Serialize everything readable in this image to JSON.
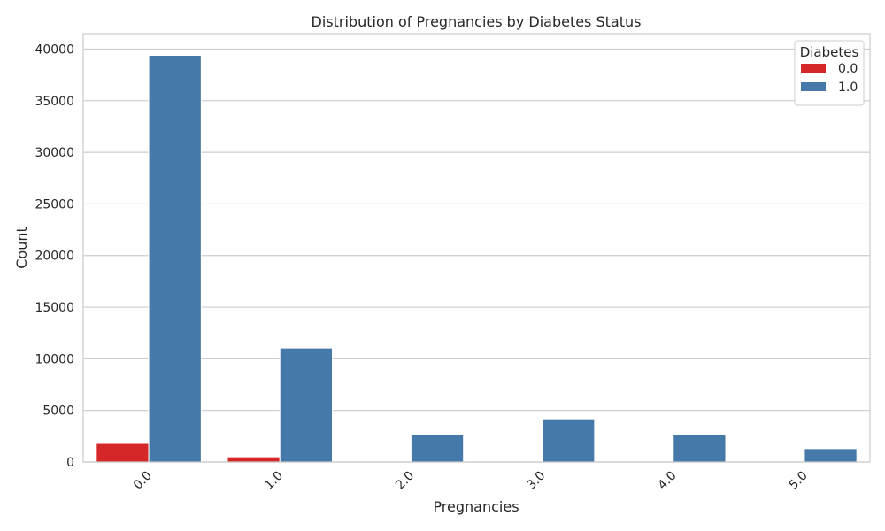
{
  "chart_data": {
    "type": "bar",
    "title": "Distribution of Pregnancies by Diabetes Status",
    "xlabel": "Pregnancies",
    "ylabel": "Count",
    "categories": [
      "0.0",
      "1.0",
      "2.0",
      "3.0",
      "4.0",
      "5.0"
    ],
    "ylim": [
      0,
      41500
    ],
    "yticks": [
      0,
      5000,
      10000,
      15000,
      20000,
      25000,
      30000,
      35000,
      40000
    ],
    "grid": true,
    "legend": {
      "title": "Diabetes",
      "placement": "top-right"
    },
    "series": [
      {
        "name": "0.0",
        "color": "#d62728",
        "values": [
          1800,
          500,
          0,
          0,
          0,
          0
        ]
      },
      {
        "name": "1.0",
        "color": "#4479aa",
        "values": [
          39400,
          11050,
          2700,
          4100,
          2700,
          1300
        ]
      }
    ]
  }
}
